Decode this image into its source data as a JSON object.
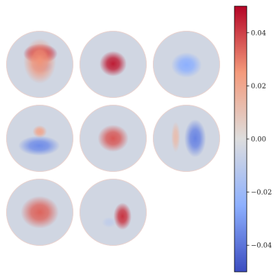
{
  "chart_data": {
    "type": "heatmap",
    "layout": {
      "rows": 3,
      "cols": 3,
      "panel_count": 8
    },
    "panels": [
      {
        "blobs": [
          {
            "cx": 0.02,
            "cy": -0.32,
            "rx": 0.38,
            "ry": 0.22,
            "v": 0.055
          },
          {
            "cx": 0.06,
            "cy": 0.05,
            "rx": 0.24,
            "ry": 0.16,
            "v": -0.018
          },
          {
            "cx": 0.0,
            "cy": -0.1,
            "rx": 0.36,
            "ry": 0.5,
            "v": 0.026
          }
        ]
      },
      {
        "blobs": [
          {
            "cx": 0.0,
            "cy": -0.02,
            "rx": 0.3,
            "ry": 0.28,
            "v": 0.046
          }
        ]
      },
      {
        "blobs": [
          {
            "cx": 0.0,
            "cy": 0.02,
            "rx": 0.34,
            "ry": 0.28,
            "v": -0.025
          }
        ]
      },
      {
        "blobs": [
          {
            "cx": -0.02,
            "cy": 0.22,
            "rx": 0.46,
            "ry": 0.22,
            "v": -0.034
          },
          {
            "cx": 0.0,
            "cy": -0.2,
            "rx": 0.16,
            "ry": 0.14,
            "v": 0.02
          }
        ]
      },
      {
        "blobs": [
          {
            "cx": 0.0,
            "cy": 0.0,
            "rx": 0.34,
            "ry": 0.3,
            "v": 0.036
          }
        ]
      },
      {
        "blobs": [
          {
            "cx": 0.26,
            "cy": 0.0,
            "rx": 0.24,
            "ry": 0.42,
            "v": -0.036
          },
          {
            "cx": -0.32,
            "cy": -0.04,
            "rx": 0.1,
            "ry": 0.34,
            "v": 0.012
          }
        ]
      },
      {
        "blobs": [
          {
            "cx": 0.0,
            "cy": 0.0,
            "rx": 0.42,
            "ry": 0.36,
            "v": 0.034
          }
        ]
      },
      {
        "blobs": [
          {
            "cx": 0.28,
            "cy": 0.12,
            "rx": 0.2,
            "ry": 0.3,
            "v": 0.042
          },
          {
            "cx": -0.12,
            "cy": 0.3,
            "rx": 0.16,
            "ry": 0.12,
            "v": -0.009
          }
        ]
      }
    ],
    "colorbar": {
      "colormap": "coolwarm",
      "vmin": -0.05,
      "vmax": 0.05,
      "ticks": [
        0.04,
        0.02,
        0.0,
        -0.02,
        -0.04
      ],
      "tick_labels": [
        "0.04",
        "0.02",
        "0.00",
        "−0.02",
        "−0.04"
      ]
    }
  }
}
